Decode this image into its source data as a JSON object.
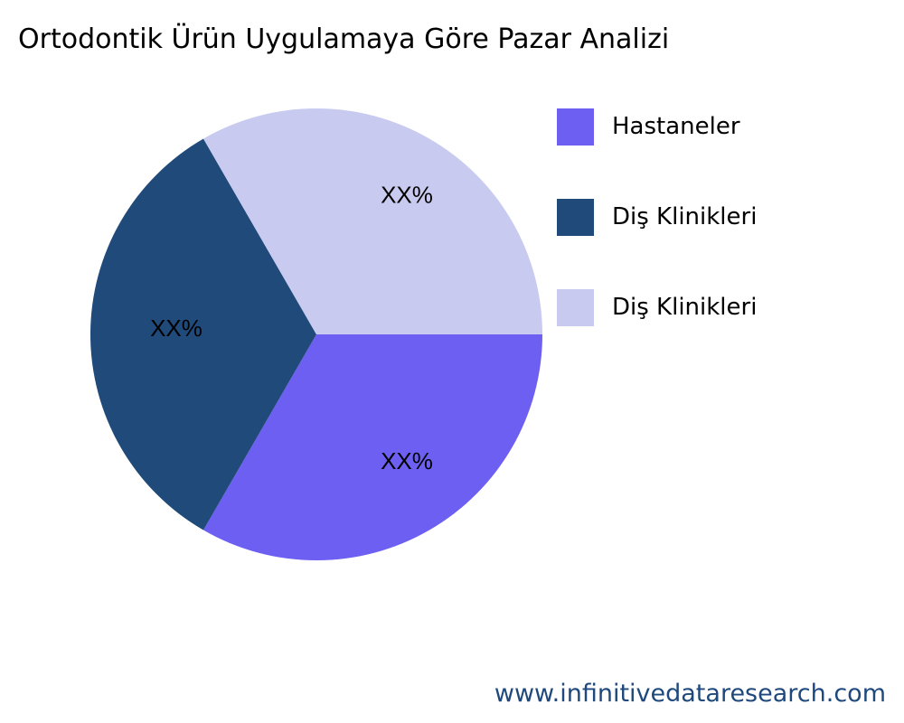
{
  "chart_data": {
    "type": "pie",
    "title": "Ortodontik Ürün Uygulamaya Göre Pazar Analizi",
    "slices": [
      {
        "name": "Hastaneler",
        "value": 33.33,
        "label": "XX%",
        "color": "#6c5ff2"
      },
      {
        "name": "Diş Klinikleri",
        "value": 33.33,
        "label": "XX%",
        "color": "#1f4a7a"
      },
      {
        "name": "Diş Klinikleri",
        "value": 33.33,
        "label": "XX%",
        "color": "#c9caf0"
      }
    ],
    "start_angle_deg": 0,
    "direction": "clockwise",
    "legend_position": "right"
  },
  "watermark": "www.infinitivedataresearch.com"
}
